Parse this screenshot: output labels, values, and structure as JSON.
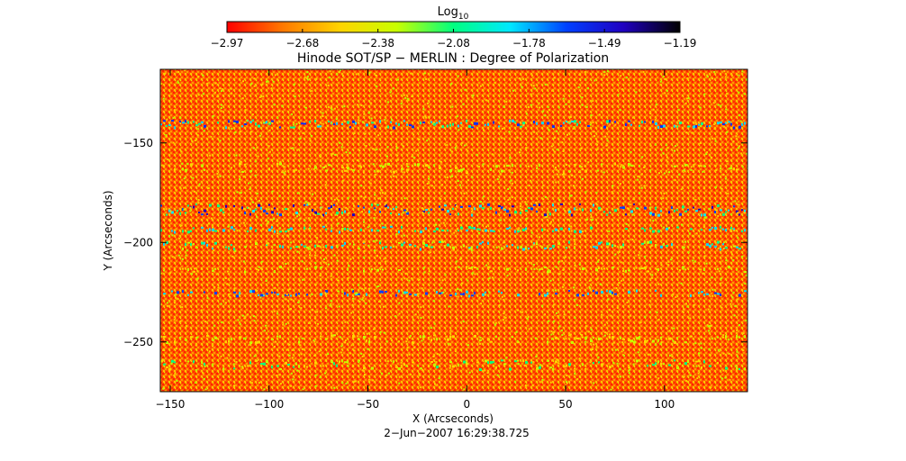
{
  "colorbar": {
    "label": "Log",
    "label_subscript": "10",
    "ticks": [
      "−2.97",
      "−2.68",
      "−2.38",
      "−2.08",
      "−1.78",
      "−1.49",
      "−1.19"
    ],
    "colors": [
      "#ff0000",
      "#ff7a00",
      "#ffd400",
      "#c8ff00",
      "#00ff80",
      "#00e8ff",
      "#0040ff",
      "#2000c0",
      "#000000"
    ]
  },
  "title": "Hinode SOT/SP − MERLIN : Degree of Polarization",
  "axes": {
    "xlabel": "X (Arcseconds)",
    "ylabel": "Y (Arcseconds)",
    "xlim": [
      -155,
      142
    ],
    "ylim": [
      -275,
      -113
    ],
    "xticks": [
      {
        "value": -150,
        "label": "−150"
      },
      {
        "value": -100,
        "label": "−100"
      },
      {
        "value": -50,
        "label": "−50"
      },
      {
        "value": 0,
        "label": "0"
      },
      {
        "value": 50,
        "label": "50"
      },
      {
        "value": 100,
        "label": "100"
      }
    ],
    "yticks": [
      {
        "value": -150,
        "label": "−150"
      },
      {
        "value": -200,
        "label": "−200"
      },
      {
        "value": -250,
        "label": "−250"
      }
    ]
  },
  "timestamp": "2−Jun−2007 16:29:38.725"
}
